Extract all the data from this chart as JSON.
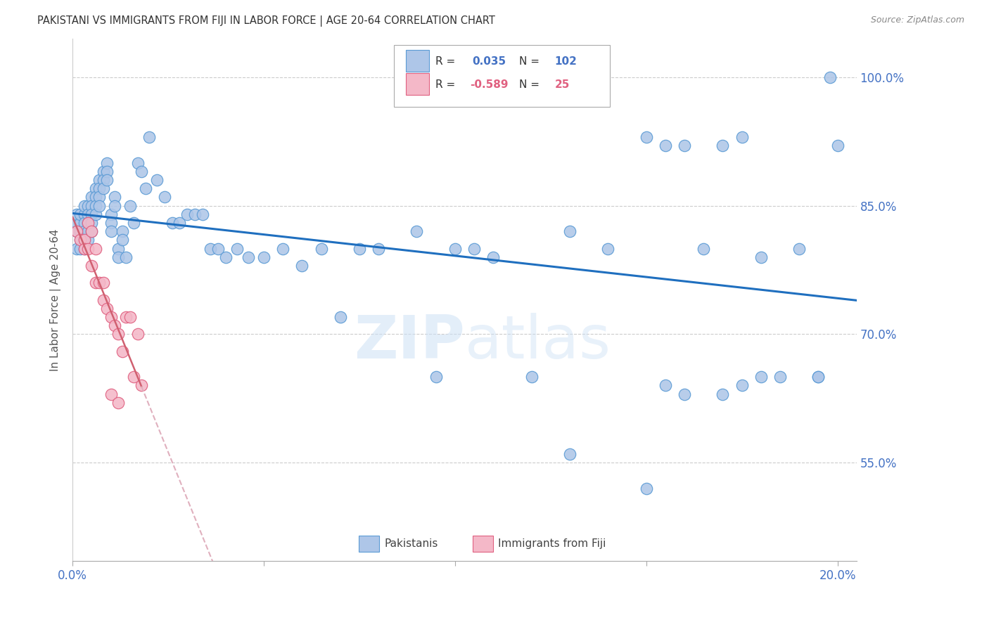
{
  "title": "PAKISTANI VS IMMIGRANTS FROM FIJI IN LABOR FORCE | AGE 20-64 CORRELATION CHART",
  "source": "Source: ZipAtlas.com",
  "ylabel": "In Labor Force | Age 20-64",
  "xlim": [
    0.0,
    0.205
  ],
  "ylim": [
    0.435,
    1.045
  ],
  "yticks": [
    0.55,
    0.7,
    0.85,
    1.0
  ],
  "ytick_labels": [
    "55.0%",
    "70.0%",
    "85.0%",
    "100.0%"
  ],
  "xticks": [
    0.0,
    0.05,
    0.1,
    0.15,
    0.2
  ],
  "xtick_labels": [
    "0.0%",
    "",
    "",
    "",
    "20.0%"
  ],
  "blue_color": "#aec6e8",
  "blue_edge": "#5b9bd5",
  "pink_color": "#f4b8c8",
  "pink_edge": "#e06080",
  "blue_line_color": "#1f6fbf",
  "pink_line_color": "#d06070",
  "pink_dash_color": "#e0b0be",
  "grid_color": "#cccccc",
  "title_color": "#444444",
  "axis_tick_color": "#4472c4",
  "watermark_color": "#d0e8f8",
  "legend_label_blue": "Pakistanis",
  "legend_label_pink": "Immigrants from Fiji",
  "blue_x": [
    0.001,
    0.001,
    0.001,
    0.001,
    0.002,
    0.002,
    0.002,
    0.002,
    0.002,
    0.003,
    0.003,
    0.003,
    0.003,
    0.003,
    0.003,
    0.004,
    0.004,
    0.004,
    0.004,
    0.004,
    0.005,
    0.005,
    0.005,
    0.005,
    0.005,
    0.006,
    0.006,
    0.006,
    0.006,
    0.007,
    0.007,
    0.007,
    0.007,
    0.008,
    0.008,
    0.008,
    0.009,
    0.009,
    0.009,
    0.01,
    0.01,
    0.01,
    0.011,
    0.011,
    0.012,
    0.012,
    0.013,
    0.013,
    0.014,
    0.015,
    0.016,
    0.017,
    0.018,
    0.019,
    0.02,
    0.022,
    0.024,
    0.026,
    0.028,
    0.03,
    0.032,
    0.034,
    0.036,
    0.038,
    0.04,
    0.043,
    0.046,
    0.05,
    0.055,
    0.06,
    0.065,
    0.07,
    0.075,
    0.08,
    0.09,
    0.095,
    0.1,
    0.105,
    0.11,
    0.12,
    0.13,
    0.14,
    0.15,
    0.155,
    0.16,
    0.165,
    0.17,
    0.175,
    0.18,
    0.185,
    0.19,
    0.195,
    0.198,
    0.2,
    0.13,
    0.15,
    0.16,
    0.17,
    0.155,
    0.175,
    0.18,
    0.195
  ],
  "blue_y": [
    0.82,
    0.83,
    0.84,
    0.8,
    0.83,
    0.84,
    0.82,
    0.81,
    0.8,
    0.84,
    0.83,
    0.82,
    0.81,
    0.8,
    0.85,
    0.85,
    0.84,
    0.83,
    0.82,
    0.81,
    0.86,
    0.85,
    0.84,
    0.83,
    0.82,
    0.87,
    0.86,
    0.85,
    0.84,
    0.88,
    0.87,
    0.86,
    0.85,
    0.89,
    0.88,
    0.87,
    0.9,
    0.89,
    0.88,
    0.84,
    0.83,
    0.82,
    0.86,
    0.85,
    0.8,
    0.79,
    0.82,
    0.81,
    0.79,
    0.85,
    0.83,
    0.9,
    0.89,
    0.87,
    0.93,
    0.88,
    0.86,
    0.83,
    0.83,
    0.84,
    0.84,
    0.84,
    0.8,
    0.8,
    0.79,
    0.8,
    0.79,
    0.79,
    0.8,
    0.78,
    0.8,
    0.72,
    0.8,
    0.8,
    0.82,
    0.65,
    0.8,
    0.8,
    0.79,
    0.65,
    0.82,
    0.8,
    0.93,
    0.92,
    0.92,
    0.8,
    0.92,
    0.93,
    0.79,
    0.65,
    0.8,
    0.65,
    1.0,
    0.92,
    0.56,
    0.52,
    0.63,
    0.63,
    0.64,
    0.64,
    0.65,
    0.65
  ],
  "pink_x": [
    0.001,
    0.002,
    0.003,
    0.003,
    0.004,
    0.004,
    0.005,
    0.005,
    0.006,
    0.006,
    0.007,
    0.008,
    0.008,
    0.009,
    0.01,
    0.011,
    0.012,
    0.013,
    0.014,
    0.015,
    0.016,
    0.017,
    0.018,
    0.01,
    0.012
  ],
  "pink_y": [
    0.82,
    0.81,
    0.81,
    0.8,
    0.83,
    0.8,
    0.82,
    0.78,
    0.8,
    0.76,
    0.76,
    0.76,
    0.74,
    0.73,
    0.72,
    0.71,
    0.7,
    0.68,
    0.72,
    0.72,
    0.65,
    0.7,
    0.64,
    0.63,
    0.62
  ]
}
